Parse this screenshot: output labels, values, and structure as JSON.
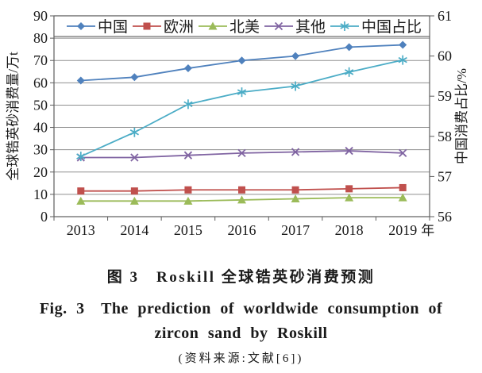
{
  "figure": {
    "caption_zh": "图 3　Roskill 全球锆英砂消费预测",
    "caption_en_line1": "Fig. 3　The prediction of worldwide consumption of",
    "caption_en_line2": "zircon sand by Roskill",
    "source": "(资料来源:文献[6])"
  },
  "chart_data": {
    "type": "line",
    "categories": [
      "2013",
      "2014",
      "2015",
      "2016",
      "2017",
      "2018",
      "2019"
    ],
    "x_suffix": "年",
    "grid": true,
    "legend_position": "top",
    "left_axis": {
      "label": "全球锆英砂消费量/万t",
      "min": 0,
      "max": 90,
      "step": 10
    },
    "right_axis": {
      "label": "中国消费占比/%",
      "min": 56,
      "max": 61,
      "step": 1
    },
    "series": [
      {
        "name": "中国",
        "axis": "left",
        "color": "#4F81BD",
        "marker": "diamond",
        "values": [
          61,
          62.5,
          66.5,
          70,
          72,
          76,
          77
        ]
      },
      {
        "name": "欧洲",
        "axis": "left",
        "color": "#C0504D",
        "marker": "square",
        "values": [
          11.5,
          11.5,
          12,
          12,
          12,
          12.5,
          13
        ]
      },
      {
        "name": "北美",
        "axis": "left",
        "color": "#9BBB59",
        "marker": "triangle",
        "values": [
          7,
          7,
          7,
          7.5,
          8,
          8.5,
          8.5
        ]
      },
      {
        "name": "其他",
        "axis": "left",
        "color": "#8064A2",
        "marker": "x",
        "values": [
          26.5,
          26.5,
          27.5,
          28.5,
          29,
          29.5,
          28.5
        ]
      },
      {
        "name": "中国占比",
        "axis": "right",
        "color": "#4BACC6",
        "marker": "asterisk",
        "values": [
          57.5,
          58.1,
          58.8,
          59.1,
          59.25,
          59.6,
          59.9
        ]
      }
    ]
  }
}
